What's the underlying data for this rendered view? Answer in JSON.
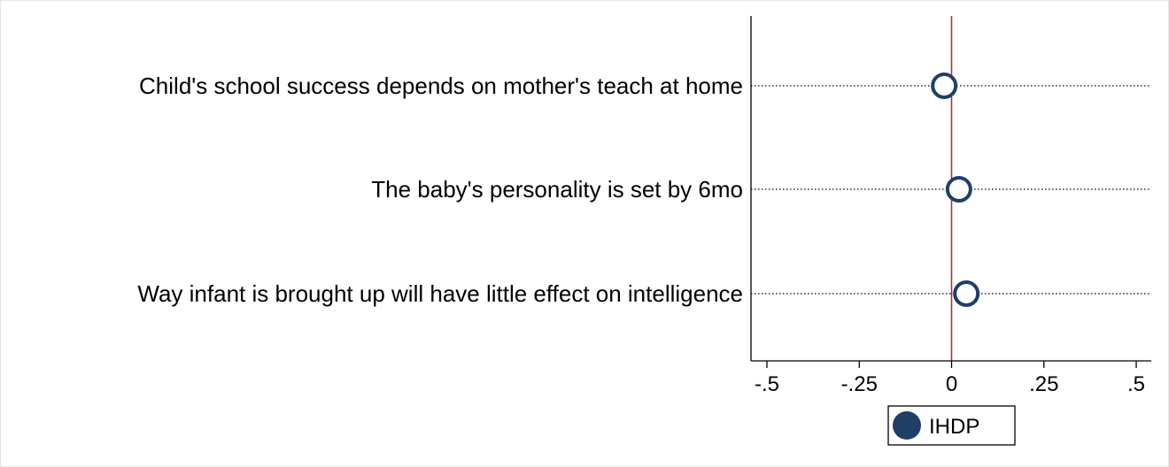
{
  "chart_data": {
    "type": "scatter",
    "title": "",
    "xlabel": "",
    "ylabel": "",
    "xlim": [
      -0.55,
      0.55
    ],
    "x_ticks": [
      -0.5,
      -0.25,
      0,
      0.25,
      0.5
    ],
    "x_tick_labels": [
      "-.5",
      "-.25",
      "0",
      ".25",
      ".5"
    ],
    "reference_line_x": 0,
    "grid": "dotted horizontal guide per category",
    "categories": [
      "Child's school success depends on mother's teach at home",
      "The baby's personality is set by 6mo",
      "Way infant is brought up will have little effect on intelligence"
    ],
    "series": [
      {
        "name": "IHDP",
        "values": [
          -0.02,
          0.02,
          0.04
        ]
      }
    ],
    "legend": {
      "placement": "bottom-center"
    },
    "colors": {
      "marker": "#1f3f66",
      "reference_line": "#b22234",
      "axis": "#000000"
    }
  }
}
